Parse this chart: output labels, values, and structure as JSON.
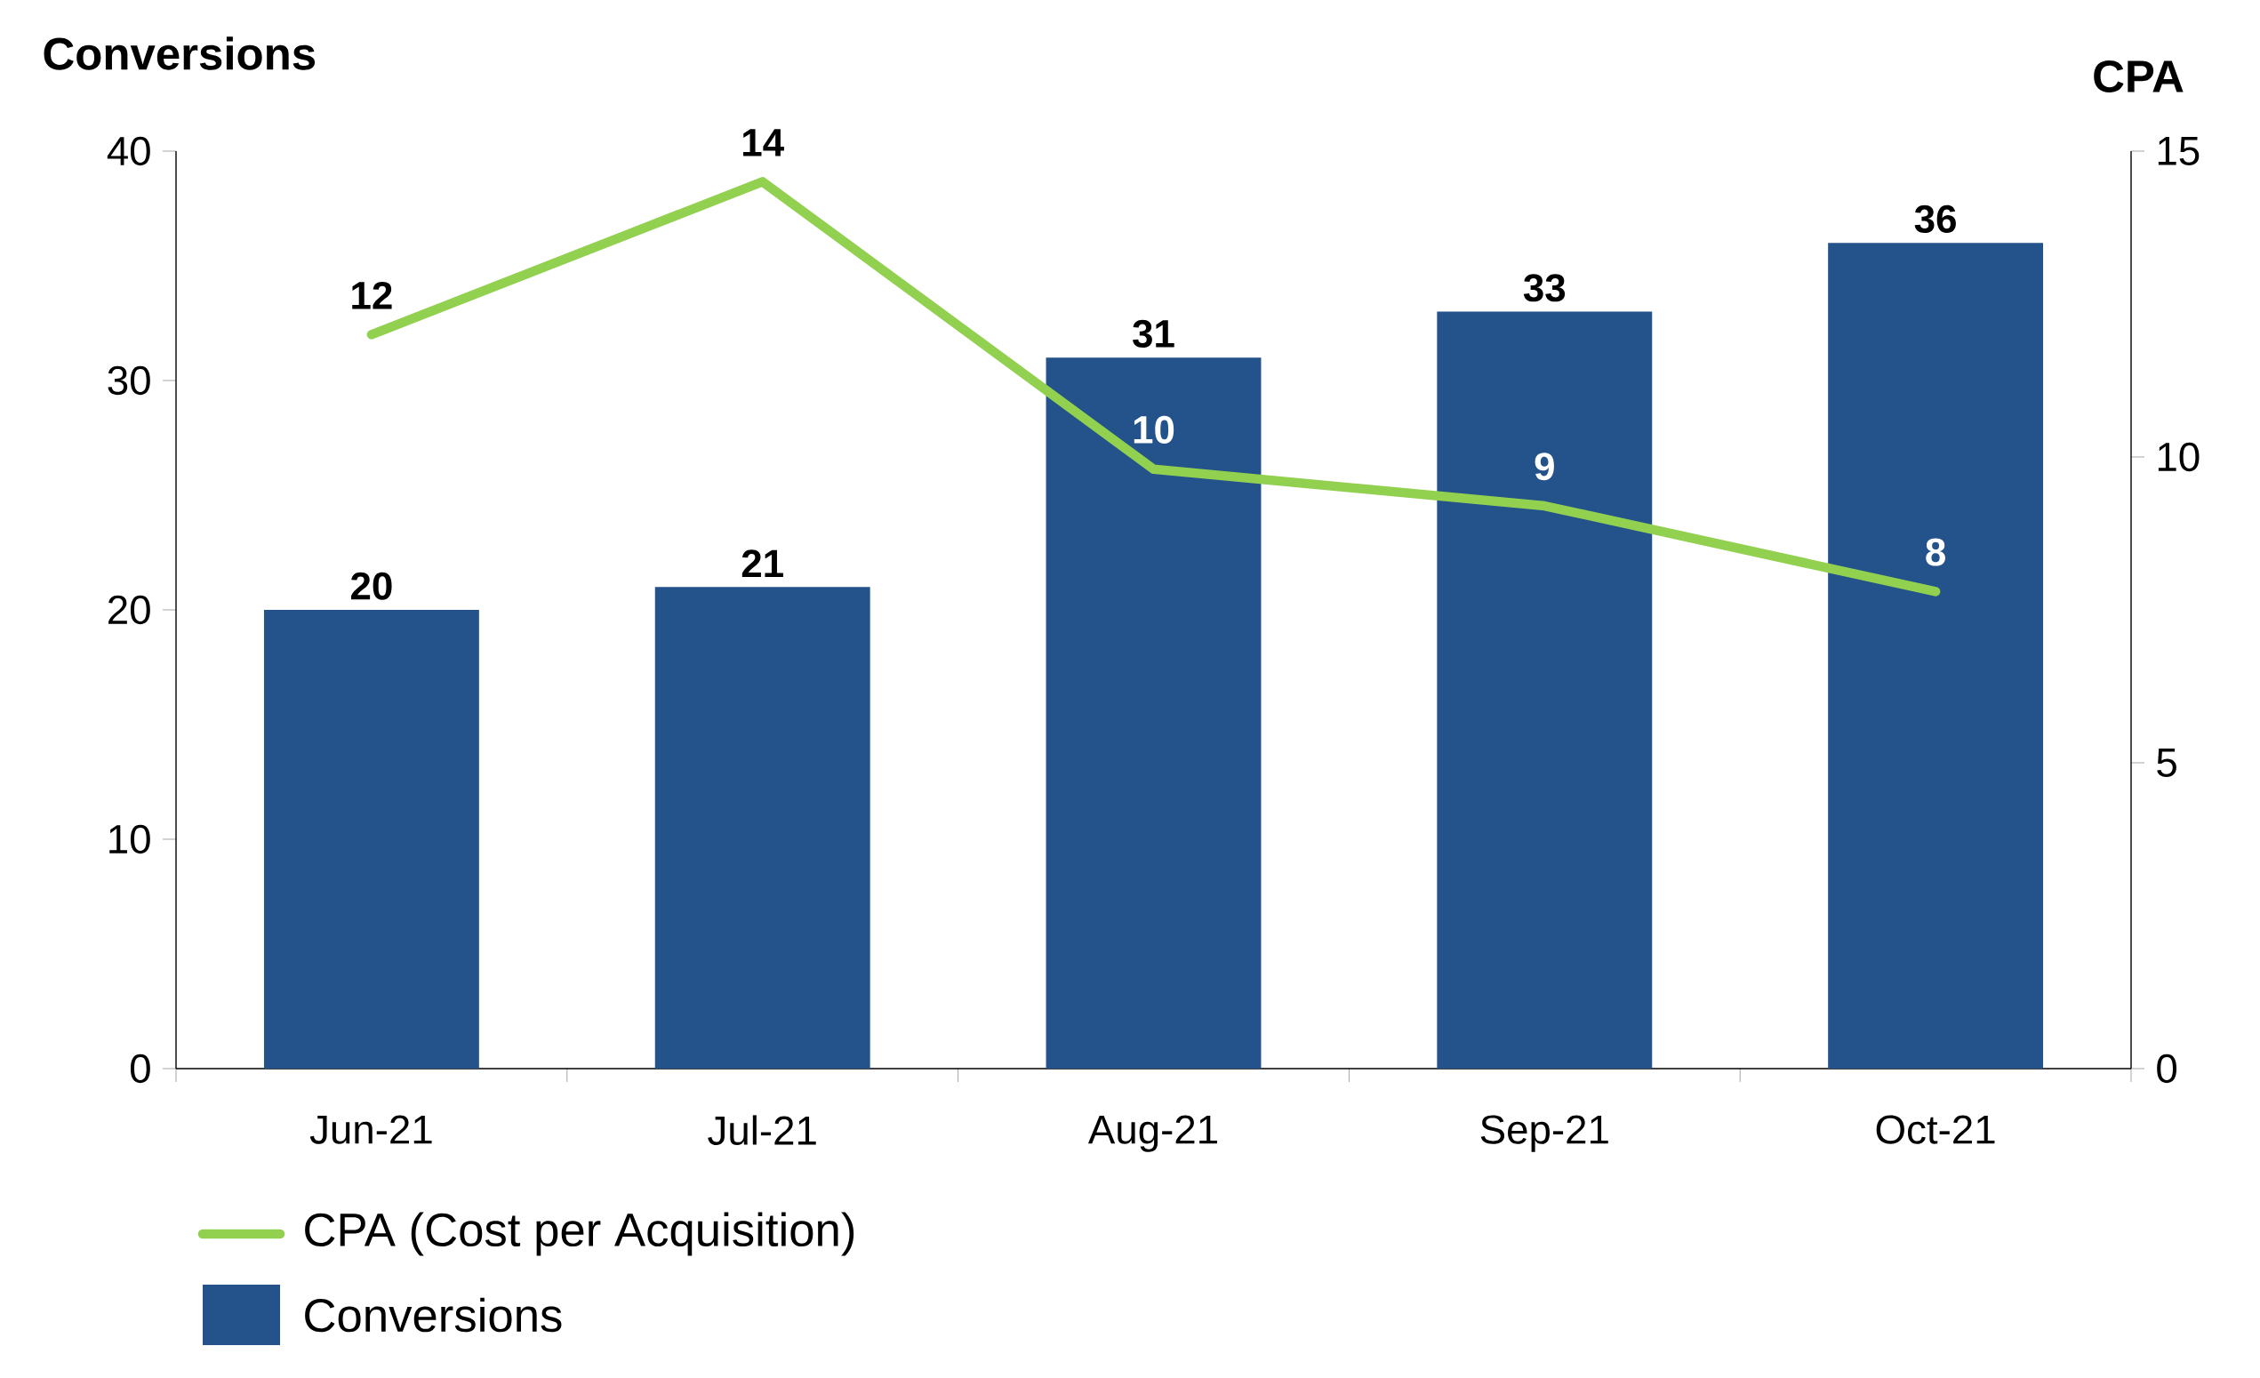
{
  "chart_data": {
    "type": "bar",
    "categories": [
      "Jun-21",
      "Jul-21",
      "Aug-21",
      "Sep-21",
      "Oct-21"
    ],
    "series": [
      {
        "name": "CPA (Cost per Acquisition)",
        "type": "line",
        "axis": "y2",
        "color": "#92d050",
        "values": [
          12.0,
          14.5,
          9.8,
          9.2,
          7.8
        ],
        "value_labels": [
          "12",
          "14",
          "10",
          "9",
          "8"
        ]
      },
      {
        "name": "Conversions",
        "color": "#24528a",
        "values": [
          20,
          21,
          31,
          33,
          36
        ]
      }
    ],
    "ylabel": "Conversions",
    "y2label": "CPA",
    "ylim": [
      0,
      40
    ],
    "yticks": [
      0,
      10,
      20,
      30,
      40
    ],
    "y2lim": [
      0,
      15
    ],
    "y2ticks": [
      0,
      5,
      10,
      15
    ],
    "data_labels": true,
    "legend": "bottom left",
    "grid": false
  }
}
